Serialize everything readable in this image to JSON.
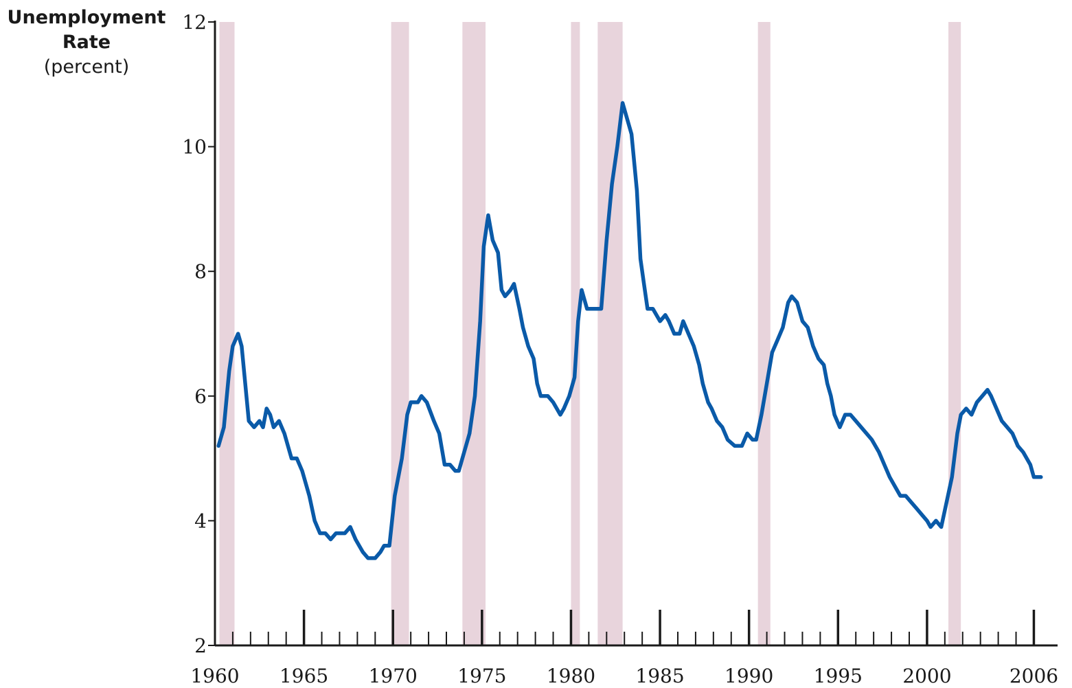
{
  "chart_data": {
    "type": "line",
    "ylabel_lines": [
      "Unemployment",
      "Rate",
      "(percent)"
    ],
    "xlabel": "",
    "ylim": [
      2,
      12
    ],
    "xlim": [
      1960,
      2006.6
    ],
    "y_ticks": [
      2,
      4,
      6,
      8,
      10,
      12
    ],
    "y_tick_labels": [
      "2",
      "4",
      "6",
      "8",
      "10",
      "12"
    ],
    "x_ticks": [
      1960,
      1965,
      1970,
      1975,
      1980,
      1985,
      1990,
      1995,
      2000,
      2006
    ],
    "x_tick_labels": [
      "1960",
      "1965",
      "1970",
      "1975",
      "1980",
      "1985",
      "1990",
      "1995",
      "2000",
      "2006"
    ],
    "grid": false,
    "recession_bands": [
      [
        1960.25,
        1961.1
      ],
      [
        1969.9,
        1970.9
      ],
      [
        1973.9,
        1975.2
      ],
      [
        1980.0,
        1980.5
      ],
      [
        1981.5,
        1982.9
      ],
      [
        1990.5,
        1991.2
      ],
      [
        2001.2,
        2001.9
      ]
    ],
    "series": [
      {
        "color": "#0a5aa8",
        "points": [
          [
            1960.2,
            5.2
          ],
          [
            1960.5,
            5.5
          ],
          [
            1960.8,
            6.4
          ],
          [
            1961.0,
            6.8
          ],
          [
            1961.3,
            7.0
          ],
          [
            1961.5,
            6.8
          ],
          [
            1961.9,
            5.6
          ],
          [
            1962.2,
            5.5
          ],
          [
            1962.5,
            5.6
          ],
          [
            1962.7,
            5.5
          ],
          [
            1962.9,
            5.8
          ],
          [
            1963.1,
            5.7
          ],
          [
            1963.3,
            5.5
          ],
          [
            1963.6,
            5.6
          ],
          [
            1963.9,
            5.4
          ],
          [
            1964.3,
            5.0
          ],
          [
            1964.6,
            5.0
          ],
          [
            1964.9,
            4.8
          ],
          [
            1965.3,
            4.4
          ],
          [
            1965.6,
            4.0
          ],
          [
            1965.9,
            3.8
          ],
          [
            1966.2,
            3.8
          ],
          [
            1966.5,
            3.7
          ],
          [
            1966.8,
            3.8
          ],
          [
            1967.3,
            3.8
          ],
          [
            1967.6,
            3.9
          ],
          [
            1967.9,
            3.7
          ],
          [
            1968.3,
            3.5
          ],
          [
            1968.6,
            3.4
          ],
          [
            1969.0,
            3.4
          ],
          [
            1969.3,
            3.5
          ],
          [
            1969.5,
            3.6
          ],
          [
            1969.8,
            3.6
          ],
          [
            1970.1,
            4.4
          ],
          [
            1970.5,
            5.0
          ],
          [
            1970.8,
            5.7
          ],
          [
            1971.0,
            5.9
          ],
          [
            1971.4,
            5.9
          ],
          [
            1971.6,
            6.0
          ],
          [
            1971.9,
            5.9
          ],
          [
            1972.3,
            5.6
          ],
          [
            1972.6,
            5.4
          ],
          [
            1972.9,
            4.9
          ],
          [
            1973.2,
            4.9
          ],
          [
            1973.5,
            4.8
          ],
          [
            1973.7,
            4.8
          ],
          [
            1974.0,
            5.1
          ],
          [
            1974.3,
            5.4
          ],
          [
            1974.6,
            6.0
          ],
          [
            1974.9,
            7.2
          ],
          [
            1975.1,
            8.4
          ],
          [
            1975.35,
            8.9
          ],
          [
            1975.6,
            8.5
          ],
          [
            1975.9,
            8.3
          ],
          [
            1976.1,
            7.7
          ],
          [
            1976.3,
            7.6
          ],
          [
            1976.6,
            7.7
          ],
          [
            1976.8,
            7.8
          ],
          [
            1977.1,
            7.4
          ],
          [
            1977.3,
            7.1
          ],
          [
            1977.6,
            6.8
          ],
          [
            1977.9,
            6.6
          ],
          [
            1978.1,
            6.2
          ],
          [
            1978.3,
            6.0
          ],
          [
            1978.7,
            6.0
          ],
          [
            1979.0,
            5.9
          ],
          [
            1979.4,
            5.7
          ],
          [
            1979.6,
            5.8
          ],
          [
            1979.9,
            6.0
          ],
          [
            1980.2,
            6.3
          ],
          [
            1980.4,
            7.2
          ],
          [
            1980.6,
            7.7
          ],
          [
            1980.9,
            7.4
          ],
          [
            1981.3,
            7.4
          ],
          [
            1981.7,
            7.4
          ],
          [
            1982.0,
            8.5
          ],
          [
            1982.3,
            9.4
          ],
          [
            1982.6,
            10.0
          ],
          [
            1982.9,
            10.7
          ],
          [
            1983.2,
            10.4
          ],
          [
            1983.4,
            10.2
          ],
          [
            1983.7,
            9.3
          ],
          [
            1983.9,
            8.2
          ],
          [
            1984.1,
            7.8
          ],
          [
            1984.3,
            7.4
          ],
          [
            1984.6,
            7.4
          ],
          [
            1985.0,
            7.2
          ],
          [
            1985.3,
            7.3
          ],
          [
            1985.5,
            7.2
          ],
          [
            1985.8,
            7.0
          ],
          [
            1986.1,
            7.0
          ],
          [
            1986.3,
            7.2
          ],
          [
            1986.6,
            7.0
          ],
          [
            1986.9,
            6.8
          ],
          [
            1987.2,
            6.5
          ],
          [
            1987.4,
            6.2
          ],
          [
            1987.7,
            5.9
          ],
          [
            1987.9,
            5.8
          ],
          [
            1988.2,
            5.6
          ],
          [
            1988.5,
            5.5
          ],
          [
            1988.8,
            5.3
          ],
          [
            1989.2,
            5.2
          ],
          [
            1989.6,
            5.2
          ],
          [
            1989.9,
            5.4
          ],
          [
            1990.2,
            5.3
          ],
          [
            1990.4,
            5.3
          ],
          [
            1990.7,
            5.7
          ],
          [
            1991.0,
            6.2
          ],
          [
            1991.3,
            6.7
          ],
          [
            1991.6,
            6.9
          ],
          [
            1991.9,
            7.1
          ],
          [
            1992.2,
            7.5
          ],
          [
            1992.4,
            7.6
          ],
          [
            1992.7,
            7.5
          ],
          [
            1993.0,
            7.2
          ],
          [
            1993.3,
            7.1
          ],
          [
            1993.6,
            6.8
          ],
          [
            1993.9,
            6.6
          ],
          [
            1994.2,
            6.5
          ],
          [
            1994.4,
            6.2
          ],
          [
            1994.6,
            6.0
          ],
          [
            1994.8,
            5.7
          ],
          [
            1995.1,
            5.5
          ],
          [
            1995.4,
            5.7
          ],
          [
            1995.7,
            5.7
          ],
          [
            1996.0,
            5.6
          ],
          [
            1996.3,
            5.5
          ],
          [
            1996.6,
            5.4
          ],
          [
            1996.9,
            5.3
          ],
          [
            1997.3,
            5.1
          ],
          [
            1997.6,
            4.9
          ],
          [
            1997.9,
            4.7
          ],
          [
            1998.3,
            4.5
          ],
          [
            1998.5,
            4.4
          ],
          [
            1998.8,
            4.4
          ],
          [
            1999.1,
            4.3
          ],
          [
            1999.4,
            4.2
          ],
          [
            1999.7,
            4.1
          ],
          [
            2000.0,
            4.0
          ],
          [
            2000.2,
            3.9
          ],
          [
            2000.5,
            4.0
          ],
          [
            2000.8,
            3.9
          ],
          [
            2001.1,
            4.3
          ],
          [
            2001.4,
            4.7
          ],
          [
            2001.7,
            5.4
          ],
          [
            2001.9,
            5.7
          ],
          [
            2002.2,
            5.8
          ],
          [
            2002.5,
            5.7
          ],
          [
            2002.8,
            5.9
          ],
          [
            2003.1,
            6.0
          ],
          [
            2003.4,
            6.1
          ],
          [
            2003.6,
            6.0
          ],
          [
            2003.9,
            5.8
          ],
          [
            2004.2,
            5.6
          ],
          [
            2004.5,
            5.5
          ],
          [
            2004.8,
            5.4
          ],
          [
            2005.1,
            5.2
          ],
          [
            2005.4,
            5.1
          ],
          [
            2005.6,
            5.0
          ],
          [
            2005.8,
            4.9
          ],
          [
            2006.0,
            4.7
          ],
          [
            2006.4,
            4.7
          ]
        ]
      }
    ]
  },
  "colors": {
    "line": "#0a5aa8",
    "recession_band": "#e8d4dc",
    "axis": "#1a1a1a"
  }
}
